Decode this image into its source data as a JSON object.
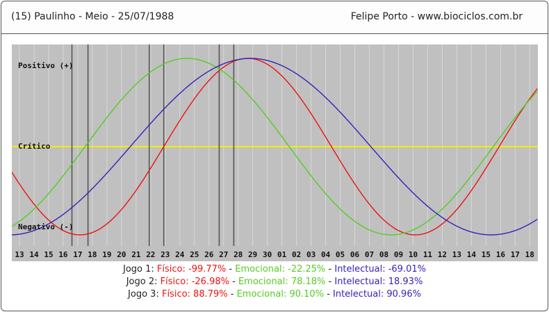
{
  "header": {
    "left": "(15)  Paulinho - Meio -  25/07/1988",
    "right": "Felipe Porto  -  www.biociclos.com.br"
  },
  "colors": {
    "fisico": "#ee1111",
    "emocional": "#55cc22",
    "intelectual": "#3322bb",
    "critico": "#f2ee00",
    "background": "#c0c0c0",
    "grid": "#d8d8d8",
    "jogo_lines": "#555555"
  },
  "chart_data": {
    "type": "line",
    "y_labels": {
      "positivo": "Positivo (+)",
      "critico": "Crítico",
      "negativo": "Negativo (-)"
    },
    "ylim": [
      -100,
      100
    ],
    "x_tick_labels": [
      "13",
      "14",
      "15",
      "16",
      "17",
      "18",
      "19",
      "20",
      "21",
      "22",
      "23",
      "24",
      "25",
      "26",
      "27",
      "28",
      "29",
      "30",
      "01",
      "02",
      "03",
      "04",
      "05",
      "06",
      "07",
      "08",
      "09",
      "10",
      "11",
      "12",
      "13",
      "14",
      "15",
      "16",
      "17",
      "18"
    ],
    "x_index_range": [
      0,
      35
    ],
    "cycles": {
      "fisico": 23,
      "emocional": 28,
      "intelectual": 33
    },
    "series": [
      {
        "key": "fisico",
        "zero_cross_index": 9.9,
        "slope": "up"
      },
      {
        "key": "emocional",
        "zero_cross_index": 4.5,
        "slope": "up"
      },
      {
        "key": "intelectual",
        "zero_cross_index": 7.6,
        "slope": "up"
      }
    ],
    "jogo_line_indices": [
      3.6,
      4.7,
      8.9,
      9.9,
      13.7,
      14.7
    ]
  },
  "legend": [
    {
      "label": "Jogo 1:",
      "fisico": "Físico: -99.77%",
      "emocional": "Emocional: -22.25%",
      "intelectual": "Intelectual: -69.01%"
    },
    {
      "label": "Jogo 2:",
      "fisico": "Físico: -26.98%",
      "emocional": "Emocional: 78.18%",
      "intelectual": "Intelectual: 18.93%"
    },
    {
      "label": "Jogo 3:",
      "fisico": "Físico: 88.79%",
      "emocional": "Emocional: 90.10%",
      "intelectual": "Intelectual: 90.96%"
    }
  ],
  "separator": " - "
}
